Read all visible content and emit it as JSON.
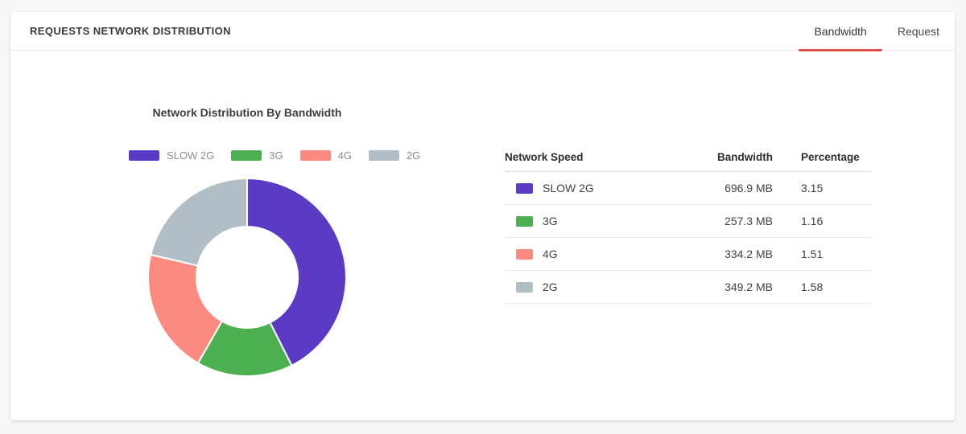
{
  "colors": {
    "accent": "#df5349",
    "page_background": "#f5f7f9",
    "card_background": "#ffffff"
  },
  "header": {
    "title": "REQUESTS NETWORK DISTRIBUTION",
    "tabs": [
      {
        "label": "Bandwidth",
        "active": true
      },
      {
        "label": "Request",
        "active": false
      }
    ]
  },
  "chart_data": {
    "type": "pie",
    "subtype": "donut",
    "title": "Network Distribution By Bandwidth",
    "categories": [
      "SLOW 2G",
      "3G",
      "4G",
      "2G"
    ],
    "values": [
      696.9,
      257.3,
      334.2,
      349.2
    ],
    "value_unit": "MB",
    "percentages": [
      3.15,
      1.16,
      1.51,
      1.58
    ],
    "colors": [
      "#5c3bc4",
      "#4caf50",
      "#fc8a80",
      "#b0bec5"
    ],
    "legend_position": "top",
    "start_angle_deg": 0,
    "direction": "clockwise",
    "inner_radius_ratio": 0.5
  },
  "table": {
    "columns": [
      "Network Speed",
      "Bandwidth",
      "Percentage"
    ],
    "rows": [
      {
        "label": "SLOW 2G",
        "color": "#5c3bc4",
        "bandwidth": "696.9 MB",
        "percentage": "3.15"
      },
      {
        "label": "3G",
        "color": "#4caf50",
        "bandwidth": "257.3 MB",
        "percentage": "1.16"
      },
      {
        "label": "4G",
        "color": "#fc8a80",
        "bandwidth": "334.2 MB",
        "percentage": "1.51"
      },
      {
        "label": "2G",
        "color": "#b0bec5",
        "bandwidth": "349.2 MB",
        "percentage": "1.58"
      }
    ]
  }
}
